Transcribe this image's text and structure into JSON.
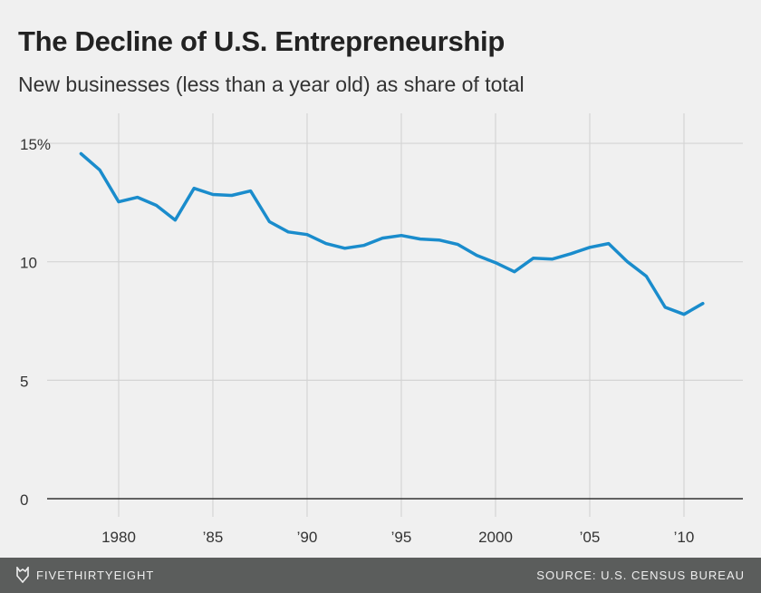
{
  "chart_data": {
    "type": "line",
    "title": "The Decline of U.S. Entrepreneurship",
    "subtitle": "New businesses (less than a year old) as share of total",
    "xlabel": "",
    "ylabel": "",
    "ylim": [
      0,
      15
    ],
    "xlim": [
      1977,
      2014
    ],
    "grid": true,
    "y_ticks": [
      {
        "value": 0,
        "label": "0"
      },
      {
        "value": 5,
        "label": "5"
      },
      {
        "value": 10,
        "label": "10"
      },
      {
        "value": 15,
        "label": "15%"
      }
    ],
    "x_ticks": [
      {
        "value": 1980,
        "label": "1980"
      },
      {
        "value": 1985,
        "label": "’85"
      },
      {
        "value": 1990,
        "label": "’90"
      },
      {
        "value": 1995,
        "label": "’95"
      },
      {
        "value": 2000,
        "label": "2000"
      },
      {
        "value": 2005,
        "label": "’05"
      },
      {
        "value": 2010,
        "label": "’10"
      }
    ],
    "series": [
      {
        "name": "New businesses share",
        "color": "#1a8ccc",
        "x": [
          1978,
          1979,
          1980,
          1981,
          1982,
          1983,
          1984,
          1985,
          1986,
          1987,
          1988,
          1989,
          1990,
          1991,
          1992,
          1993,
          1994,
          1995,
          1996,
          1997,
          1998,
          1999,
          2000,
          2001,
          2002,
          2003,
          2004,
          2005,
          2006,
          2007,
          2008,
          2009,
          2010,
          2011
        ],
        "values": [
          14.56,
          13.87,
          12.53,
          12.72,
          12.38,
          11.76,
          13.1,
          12.84,
          12.8,
          12.99,
          11.69,
          11.26,
          11.15,
          10.77,
          10.57,
          10.69,
          11.0,
          11.11,
          10.96,
          10.92,
          10.73,
          10.27,
          9.96,
          9.58,
          10.15,
          10.11,
          10.34,
          10.61,
          10.77,
          10.0,
          9.39,
          8.08,
          7.78,
          8.24
        ]
      }
    ]
  },
  "footer": {
    "brand": "FIVETHIRTYEIGHT",
    "source": "SOURCE: U.S. CENSUS BUREAU"
  }
}
